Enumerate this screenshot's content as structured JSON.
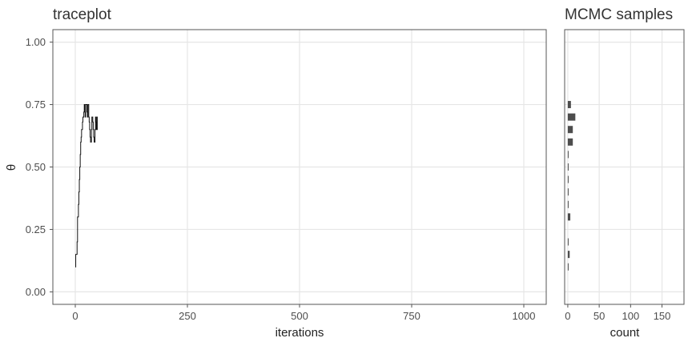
{
  "chart_data": [
    {
      "type": "line",
      "title": "traceplot",
      "xlabel": "iterations",
      "ylabel": "θ",
      "xlim": [
        -50,
        1050
      ],
      "ylim": [
        -0.05,
        1.05
      ],
      "xticks": [
        0,
        250,
        500,
        750,
        1000
      ],
      "yticks": [
        0.0,
        0.25,
        0.5,
        0.75,
        1.0
      ],
      "ytick_labels": [
        "0.00",
        "0.25",
        "0.50",
        "0.75",
        "1.00"
      ],
      "grid": true,
      "series": [
        {
          "x": [
            0,
            1,
            2,
            3,
            4,
            5,
            6,
            7,
            8,
            9,
            10,
            11,
            12,
            13,
            14,
            15,
            16,
            17,
            18,
            19,
            20,
            21,
            22,
            23,
            24,
            25,
            26,
            27,
            28,
            29,
            30,
            31,
            32,
            33,
            34,
            35,
            36,
            37,
            38,
            39,
            40,
            41,
            42,
            43,
            44,
            45,
            46,
            47,
            48,
            49,
            50
          ],
          "y": [
            0.1,
            0.15,
            0.15,
            0.15,
            0.2,
            0.3,
            0.3,
            0.35,
            0.4,
            0.45,
            0.5,
            0.55,
            0.6,
            0.62,
            0.65,
            0.65,
            0.68,
            0.7,
            0.7,
            0.72,
            0.75,
            0.72,
            0.7,
            0.75,
            0.75,
            0.75,
            0.72,
            0.7,
            0.75,
            0.75,
            0.7,
            0.68,
            0.65,
            0.62,
            0.6,
            0.6,
            0.65,
            0.7,
            0.7,
            0.68,
            0.65,
            0.62,
            0.6,
            0.6,
            0.65,
            0.7,
            0.68,
            0.65,
            0.7,
            0.65,
            0.65
          ]
        }
      ]
    },
    {
      "type": "bar",
      "orientation": "horizontal",
      "title": "MCMC samples",
      "xlabel": "count",
      "ylabel": "",
      "xlim": [
        -5,
        185
      ],
      "ylim": [
        -0.05,
        1.05
      ],
      "xticks": [
        0,
        50,
        100,
        150
      ],
      "grid": true,
      "bins": [
        0.1,
        0.15,
        0.2,
        0.3,
        0.35,
        0.4,
        0.45,
        0.5,
        0.55,
        0.6,
        0.65,
        0.7,
        0.75
      ],
      "values": [
        1,
        3,
        1,
        4,
        1,
        1,
        1,
        1,
        1,
        8,
        8,
        12,
        5
      ]
    }
  ]
}
